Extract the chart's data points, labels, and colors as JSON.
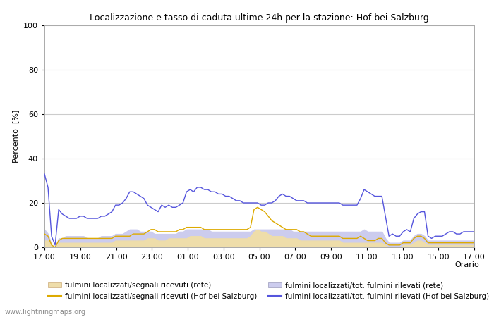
{
  "title": "Localizzazione e tasso di caduta ultime 24h per la stazione: Hof bei Salzburg",
  "ylabel": "Percento  [%]",
  "xlabel": "Orario",
  "watermark": "www.lightningmaps.org",
  "ylim": [
    0,
    100
  ],
  "yticks": [
    0,
    20,
    40,
    60,
    80,
    100
  ],
  "xtick_labels": [
    "17:00",
    "19:00",
    "21:00",
    "23:00",
    "01:00",
    "03:00",
    "05:00",
    "07:00",
    "09:00",
    "11:00",
    "13:00",
    "15:00",
    "17:00"
  ],
  "legend": [
    {
      "label": "fulmini localizzati/segnali ricevuti (rete)",
      "color": "#f5d78e",
      "type": "fill"
    },
    {
      "label": "fulmini localizzati/segnali ricevuti (Hof bei Salzburg)",
      "color": "#e8a000",
      "type": "line"
    },
    {
      "label": "fulmini localizzati/tot. fulmini rilevati (rete)",
      "color": "#c8c8f0",
      "type": "fill"
    },
    {
      "label": "fulmini localizzati/tot. fulmini rilevati (Hof bei Salzburg)",
      "color": "#4040c0",
      "type": "line"
    }
  ],
  "blue_line": [
    33,
    27,
    5,
    1,
    17,
    15,
    14,
    13,
    13,
    13,
    14,
    14,
    13,
    13,
    13,
    13,
    14,
    14,
    15,
    16,
    19,
    19,
    20,
    22,
    25,
    25,
    24,
    23,
    22,
    19,
    18,
    17,
    16,
    19,
    18,
    19,
    18,
    18,
    19,
    20,
    25,
    26,
    25,
    27,
    27,
    26,
    26,
    25,
    25,
    24,
    24,
    23,
    23,
    22,
    21,
    21,
    20,
    20,
    20,
    20,
    20,
    19,
    19,
    20,
    20,
    21,
    23,
    24,
    23,
    23,
    22,
    21,
    21,
    21,
    20,
    20,
    20,
    20,
    20,
    20,
    20,
    20,
    20,
    20,
    19,
    19,
    19,
    19,
    19,
    22,
    26,
    25,
    24,
    23,
    23,
    23,
    14,
    5,
    6,
    5,
    5,
    7,
    8,
    7,
    13,
    15,
    16,
    16,
    5,
    4,
    5,
    5,
    5,
    6,
    7,
    7,
    6,
    6,
    7,
    7,
    7,
    7
  ],
  "orange_line": [
    6,
    5,
    1,
    0,
    3,
    4,
    4,
    4,
    4,
    4,
    4,
    4,
    4,
    4,
    4,
    4,
    4,
    4,
    4,
    4,
    5,
    5,
    5,
    5,
    5,
    6,
    6,
    6,
    6,
    7,
    8,
    8,
    7,
    7,
    7,
    7,
    7,
    7,
    8,
    8,
    9,
    9,
    9,
    9,
    9,
    8,
    8,
    8,
    8,
    8,
    8,
    8,
    8,
    8,
    8,
    8,
    8,
    8,
    9,
    17,
    18,
    17,
    16,
    14,
    12,
    11,
    10,
    9,
    8,
    8,
    8,
    8,
    7,
    7,
    6,
    5,
    5,
    5,
    5,
    5,
    5,
    5,
    5,
    5,
    4,
    4,
    4,
    4,
    4,
    5,
    4,
    3,
    3,
    3,
    4,
    4,
    2,
    1,
    1,
    1,
    1,
    2,
    2,
    2,
    4,
    5,
    5,
    4,
    2,
    2,
    2,
    2,
    2,
    2,
    2,
    2,
    2,
    2,
    2,
    2,
    2,
    2
  ],
  "blue_fill": [
    8,
    6,
    1,
    0,
    4,
    4,
    5,
    5,
    5,
    5,
    5,
    5,
    4,
    4,
    4,
    4,
    5,
    5,
    5,
    5,
    6,
    6,
    6,
    7,
    8,
    8,
    8,
    7,
    7,
    7,
    7,
    6,
    6,
    6,
    6,
    6,
    6,
    6,
    7,
    7,
    8,
    8,
    8,
    8,
    8,
    8,
    8,
    7,
    7,
    7,
    7,
    7,
    7,
    7,
    7,
    7,
    7,
    7,
    7,
    8,
    8,
    8,
    8,
    8,
    8,
    8,
    8,
    8,
    8,
    8,
    7,
    7,
    7,
    7,
    7,
    7,
    7,
    7,
    7,
    7,
    7,
    7,
    7,
    7,
    7,
    7,
    7,
    7,
    7,
    7,
    8,
    7,
    7,
    7,
    7,
    7,
    4,
    2,
    2,
    2,
    2,
    3,
    3,
    3,
    5,
    6,
    6,
    5,
    3,
    3,
    3,
    3,
    3,
    3,
    3,
    3,
    3,
    3,
    3,
    3,
    3,
    3
  ],
  "orange_fill": [
    3,
    3,
    0,
    0,
    2,
    2,
    2,
    2,
    2,
    2,
    2,
    2,
    2,
    2,
    2,
    2,
    2,
    2,
    2,
    2,
    3,
    3,
    3,
    3,
    3,
    3,
    3,
    3,
    3,
    4,
    4,
    4,
    3,
    3,
    3,
    4,
    4,
    4,
    4,
    4,
    4,
    5,
    5,
    5,
    5,
    4,
    4,
    4,
    4,
    4,
    4,
    4,
    4,
    4,
    4,
    4,
    4,
    4,
    5,
    7,
    8,
    7,
    7,
    6,
    5,
    5,
    5,
    5,
    4,
    4,
    4,
    4,
    3,
    3,
    3,
    3,
    3,
    3,
    3,
    3,
    3,
    3,
    3,
    3,
    2,
    2,
    2,
    2,
    2,
    2,
    2,
    2,
    2,
    2,
    2,
    2,
    1,
    0,
    0,
    0,
    0,
    1,
    1,
    1,
    2,
    3,
    3,
    2,
    1,
    1,
    1,
    1,
    1,
    1,
    1,
    1,
    1,
    1,
    1,
    1,
    1,
    1
  ],
  "background_color": "#ffffff",
  "grid_color": "#cccccc",
  "line_colors": {
    "blue": "#5555dd",
    "orange": "#ddaa00",
    "blue_fill": "#ccccee",
    "orange_fill": "#eeddaa"
  },
  "figsize": [
    7.0,
    4.5
  ],
  "dpi": 100
}
